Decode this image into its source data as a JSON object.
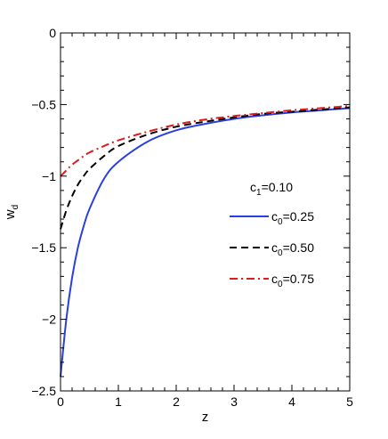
{
  "chart_data": {
    "type": "line",
    "xlabel": "z",
    "ylabel_main": "w",
    "ylabel_sub": "d",
    "xlim": [
      0,
      5
    ],
    "ylim": [
      -2.5,
      0
    ],
    "x_ticks": [
      0,
      1,
      2,
      3,
      4,
      5
    ],
    "y_ticks": [
      0,
      -0.5,
      -1,
      -1.5,
      -2,
      -2.5
    ],
    "x_tick_labels": [
      "0",
      "1",
      "2",
      "3",
      "4",
      "5"
    ],
    "y_tick_labels": [
      "0",
      "−0.5",
      "−1",
      "−1.5",
      "−2",
      "−2.5"
    ],
    "grid": false,
    "legend_placement": "center-right",
    "annotation": {
      "main": "c",
      "sub": "1",
      "rest": "=0.10"
    },
    "series": [
      {
        "name_main": "c",
        "name_sub": "0",
        "name_rest": "=0.25",
        "color": "#2b3fe0",
        "style": "solid",
        "x": [
          0,
          0.1,
          0.2,
          0.3,
          0.4,
          0.5,
          0.75,
          1,
          1.5,
          2,
          2.5,
          3,
          3.5,
          4,
          4.5,
          5
        ],
        "y": [
          -2.4,
          -2.0,
          -1.71,
          -1.5,
          -1.35,
          -1.23,
          -1.02,
          -0.9,
          -0.76,
          -0.68,
          -0.635,
          -0.6,
          -0.575,
          -0.555,
          -0.54,
          -0.525
        ]
      },
      {
        "name_main": "c",
        "name_sub": "0",
        "name_rest": "=0.50",
        "color": "#000000",
        "style": "dashed",
        "x": [
          0,
          0.1,
          0.2,
          0.3,
          0.4,
          0.5,
          0.75,
          1,
          1.5,
          2,
          2.5,
          3,
          3.5,
          4,
          4.5,
          5
        ],
        "y": [
          -1.37,
          -1.24,
          -1.14,
          -1.06,
          -1.0,
          -0.95,
          -0.86,
          -0.79,
          -0.71,
          -0.655,
          -0.62,
          -0.59,
          -0.565,
          -0.55,
          -0.535,
          -0.52
        ]
      },
      {
        "name_main": "c",
        "name_sub": "0",
        "name_rest": "=0.75",
        "color": "#e01b1b",
        "style": "dashdot",
        "x": [
          0,
          0.1,
          0.2,
          0.3,
          0.4,
          0.5,
          0.75,
          1,
          1.5,
          2,
          2.5,
          3,
          3.5,
          4,
          4.5,
          5
        ],
        "y": [
          -1.0,
          -0.96,
          -0.92,
          -0.89,
          -0.86,
          -0.835,
          -0.79,
          -0.75,
          -0.69,
          -0.64,
          -0.605,
          -0.58,
          -0.56,
          -0.54,
          -0.525,
          -0.51
        ]
      }
    ]
  }
}
